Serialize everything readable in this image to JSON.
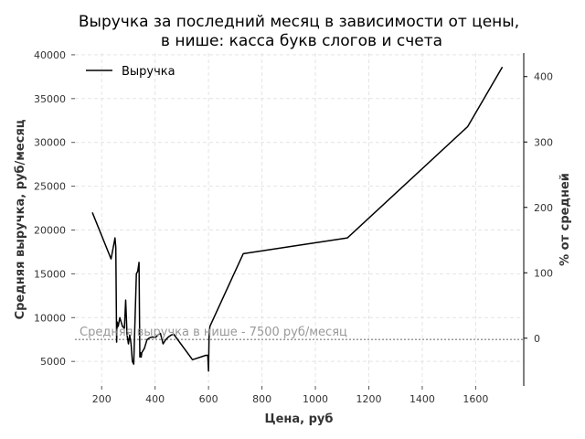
{
  "chart_data": {
    "type": "line",
    "title_line1": "Выручка за последний месяц в зависимости от цены,",
    "title_line2": "в нише: касса букв слогов и счета",
    "xlabel": "Цена, руб",
    "ylabel": "Средняя выручка, руб/месяц",
    "y2label": "% от средней",
    "xlim": [
      100,
      1780
    ],
    "ylim": [
      2200,
      40200
    ],
    "y2lim": [
      -73,
      436
    ],
    "xticks": [
      200,
      400,
      600,
      800,
      1000,
      1200,
      1400,
      1600
    ],
    "yticks": [
      5000,
      10000,
      15000,
      20000,
      25000,
      30000,
      35000,
      40000
    ],
    "y2ticks": [
      0,
      100,
      200,
      300,
      400
    ],
    "grid": true,
    "legend_position": "top-left",
    "series": [
      {
        "name": "Выручка",
        "color": "#000000",
        "x": [
          165,
          235,
          248,
          250,
          253,
          256,
          258,
          262,
          268,
          278,
          285,
          290,
          295,
          300,
          305,
          310,
          315,
          320,
          330,
          335,
          340,
          343,
          345,
          348,
          350,
          360,
          370,
          380,
          390,
          400,
          410,
          420,
          430,
          440,
          450,
          460,
          470,
          540,
          590,
          597,
          600,
          602,
          605,
          730,
          1120,
          1570,
          1700
        ],
        "y": [
          22000,
          16700,
          18800,
          19100,
          18000,
          7200,
          9500,
          9000,
          10000,
          9000,
          8800,
          12000,
          8000,
          7000,
          8000,
          7000,
          5000,
          4700,
          15000,
          15300,
          16300,
          5500,
          6000,
          5500,
          6000,
          6500,
          7500,
          7700,
          7800,
          7700,
          8000,
          8200,
          7000,
          7500,
          7800,
          8000,
          8100,
          5200,
          5700,
          5700,
          3900,
          7700,
          9000,
          17300,
          19100,
          31800,
          38600
        ]
      }
    ],
    "hline": {
      "value": 7500,
      "label": "Средняя выручка в нише - 7500 руб/месяц",
      "color": "#999999"
    }
  }
}
